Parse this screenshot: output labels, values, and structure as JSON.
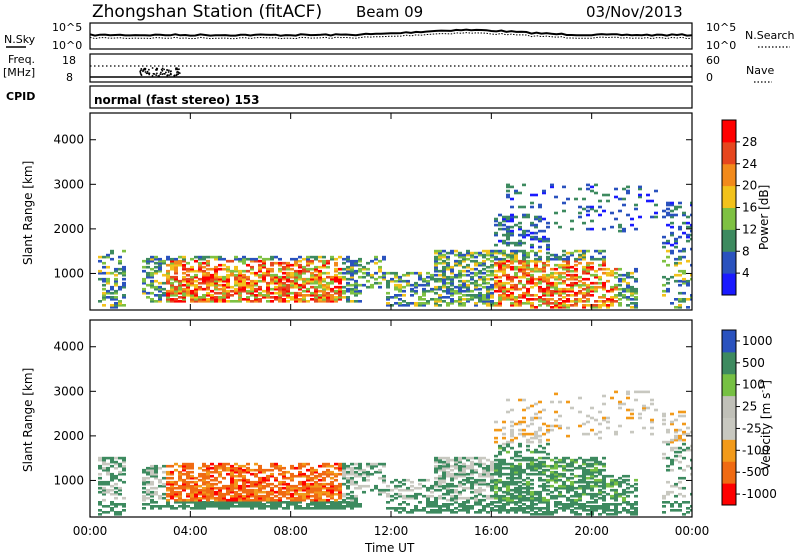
{
  "header": {
    "station": "Zhongshan Station (fitACF)",
    "beam": "Beam 09",
    "date": "03/Nov/2013"
  },
  "strips": {
    "nsky_label": "N.Sky",
    "nsky_tick_top": "10^5",
    "nsky_tick_bottom": "10^0",
    "nsearch_label": "N.Search",
    "nsearch_tick_top": "10^5",
    "nsearch_tick_bottom": "10^0",
    "freq_label": "Freq.",
    "freq_unit": "[MHz]",
    "freq_tick_top": "18",
    "freq_tick_bottom": "8",
    "nave_label": "Nave",
    "nave_tick_top": "60",
    "nave_tick_bottom": "0",
    "cpid_label": "CPID",
    "cpid_text": "normal (fast stereo) 153"
  },
  "colors": {
    "power": [
      "#1a1aff",
      "#2a52be",
      "#3d8a5f",
      "#7ec142",
      "#f2c21b",
      "#f28a1b",
      "#e6461e",
      "#ff0000"
    ],
    "velocity": [
      "#ff0000",
      "#f06a12",
      "#f29a1a",
      "#c8c8c0",
      "#c0c0b8",
      "#76c043",
      "#3d8a5f",
      "#2a52be"
    ]
  },
  "chart_data": [
    {
      "type": "heatmap",
      "quantity": "power",
      "ylabel": "Slant Range [km]",
      "y_ticks": [
        "1000",
        "2000",
        "3000",
        "4000"
      ],
      "ylim": [
        180,
        4600
      ],
      "xlim": [
        "00:00",
        "24:00"
      ],
      "colorbar_label": "Power [dB]",
      "colorbar_ticks": [
        "4",
        "8",
        "12",
        "16",
        "20",
        "24",
        "28"
      ],
      "colorbar_range": [
        0,
        32
      ]
    },
    {
      "type": "heatmap",
      "quantity": "velocity",
      "ylabel": "Slant Range [km]",
      "y_ticks": [
        "1000",
        "2000",
        "3000",
        "4000"
      ],
      "ylim": [
        180,
        4600
      ],
      "xlim": [
        "00:00",
        "24:00"
      ],
      "xlabel": "Time UT",
      "x_ticks": [
        "00:00",
        "04:00",
        "08:00",
        "12:00",
        "16:00",
        "20:00",
        "00:00"
      ],
      "colorbar_label": "Velocity [m s-1]",
      "colorbar_ticks": [
        "1000",
        "500",
        "100",
        "25",
        "-25",
        "-100",
        "-500",
        "-1000"
      ]
    }
  ]
}
